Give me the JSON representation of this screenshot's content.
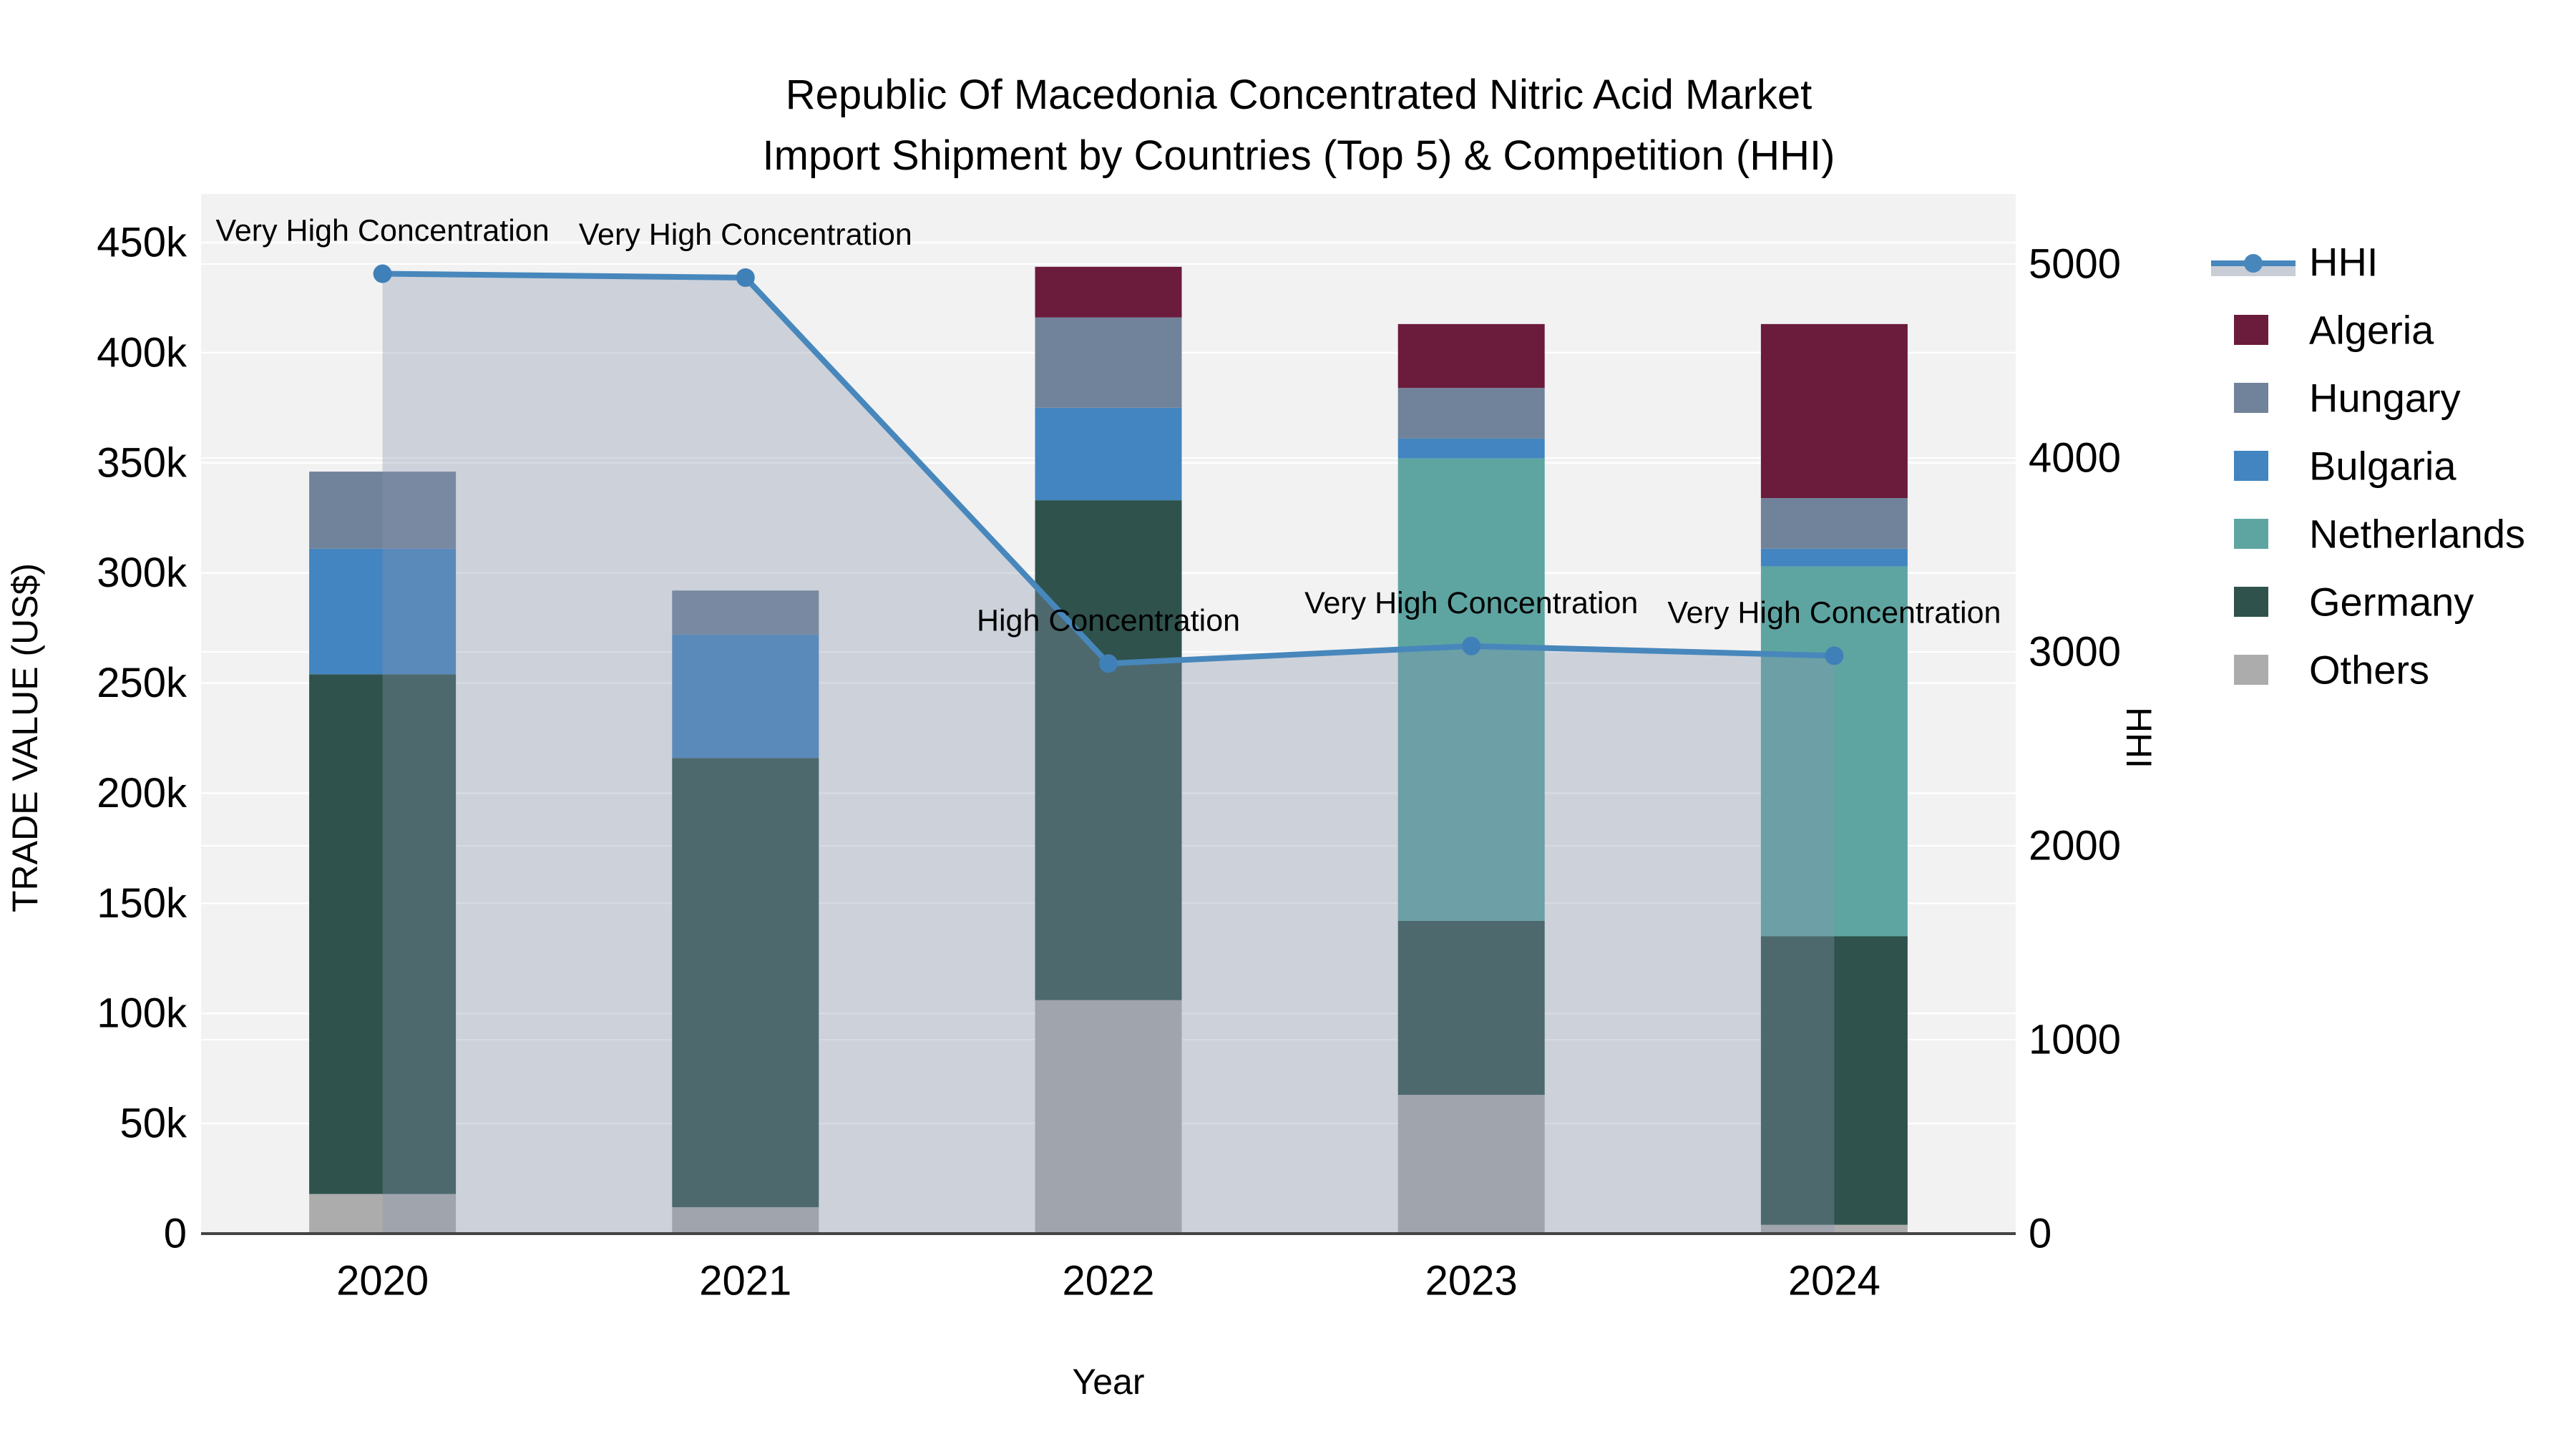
{
  "title": {
    "line1": "Republic Of Macedonia Concentrated Nitric Acid Market",
    "line2": "Import Shipment by Countries (Top 5) & Competition (HHI)"
  },
  "axes": {
    "x": {
      "title": "Year",
      "tick_labels": [
        "2020",
        "2021",
        "2022",
        "2023",
        "2024"
      ]
    },
    "y_left": {
      "title": "TRADE VALUE (US$)",
      "tick_labels": [
        "0",
        "50k",
        "100k",
        "150k",
        "200k",
        "250k",
        "300k",
        "350k",
        "400k",
        "450k"
      ]
    },
    "y_right": {
      "title": "HHI",
      "tick_labels": [
        "0",
        "1000",
        "2000",
        "3000",
        "4000",
        "5000"
      ]
    }
  },
  "legend": {
    "items": [
      {
        "label": "HHI",
        "type": "line",
        "color": "#4787BC",
        "band_color": "#C9CED6"
      },
      {
        "label": "Algeria",
        "type": "swatch",
        "color": "#6B1B3C"
      },
      {
        "label": "Hungary",
        "type": "swatch",
        "color": "#71839A"
      },
      {
        "label": "Bulgaria",
        "type": "swatch",
        "color": "#4285C0"
      },
      {
        "label": "Netherlands",
        "type": "swatch",
        "color": "#5EA5A2"
      },
      {
        "label": "Germany",
        "type": "swatch",
        "color": "#2F524C"
      },
      {
        "label": "Others",
        "type": "swatch",
        "color": "#ACACAC"
      }
    ]
  },
  "chart_data": {
    "type": "bar+line",
    "title": "Republic Of Macedonia Concentrated Nitric Acid Market Import Shipment by Countries (Top 5) & Competition (HHI)",
    "xlabel": "Year",
    "ylabel_left": "TRADE VALUE (US$)",
    "ylabel_right": "HHI",
    "categories": [
      "2020",
      "2021",
      "2022",
      "2023",
      "2024"
    ],
    "bar_stack_order_bottom_to_top": [
      "Others",
      "Germany",
      "Netherlands",
      "Bulgaria",
      "Hungary",
      "Algeria"
    ],
    "series": [
      {
        "name": "Others",
        "color": "#ACACAC",
        "values": [
          18000,
          12000,
          106000,
          63000,
          4000
        ]
      },
      {
        "name": "Germany",
        "color": "#2F524C",
        "values": [
          236000,
          204000,
          227000,
          79000,
          131000
        ]
      },
      {
        "name": "Netherlands",
        "color": "#5EA5A2",
        "values": [
          0,
          0,
          0,
          210000,
          168000
        ]
      },
      {
        "name": "Bulgaria",
        "color": "#4285C0",
        "values": [
          57000,
          56000,
          42000,
          9000,
          8000
        ]
      },
      {
        "name": "Hungary",
        "color": "#71839A",
        "values": [
          35000,
          20000,
          41000,
          23000,
          23000
        ]
      },
      {
        "name": "Algeria",
        "color": "#6B1B3C",
        "values": [
          0,
          0,
          23000,
          29000,
          79000
        ]
      }
    ],
    "bar_totals": [
      346000,
      292000,
      439000,
      413000,
      413000
    ],
    "line_series": {
      "name": "HHI",
      "color": "#4787BC",
      "marker_color": "#4080B8",
      "area_fill": "rgba(136,150,174,0.35)",
      "values": [
        4950,
        4930,
        2940,
        3030,
        2980
      ],
      "annotations": [
        "Very High Concentration",
        "Very High Concentration",
        "High Concentration",
        "Very High Concentration",
        "Very High Concentration"
      ]
    },
    "ylim_left": [
      0,
      450000
    ],
    "ylim_right": [
      0,
      5000
    ],
    "grid": true,
    "plot_bg": "#F2F2F2",
    "legend_position": "right"
  }
}
